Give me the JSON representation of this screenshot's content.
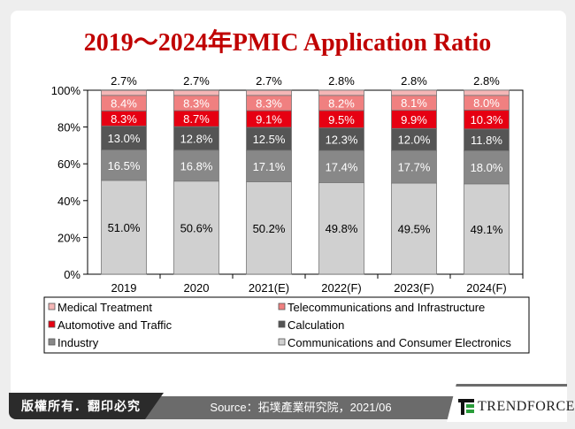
{
  "title": "2019～2024年PMIC Application Ratio",
  "footer": {
    "copyright": "版權所有．翻印必究",
    "source": "Source：拓墣產業研究院，2021/06",
    "logo_text": "TrendForce"
  },
  "chart_data": {
    "type": "bar",
    "stacked": true,
    "title": "2019～2024年PMIC Application Ratio",
    "categories": [
      "2019",
      "2020",
      "2021(E)",
      "2022(F)",
      "2023(F)",
      "2024(F)"
    ],
    "ylim": [
      0,
      100
    ],
    "yticks": [
      "0%",
      "20%",
      "40%",
      "60%",
      "80%",
      "100%"
    ],
    "grid": false,
    "legend_position": "bottom",
    "series": [
      {
        "name": "Communications and Consumer Electronics",
        "color": "#d0d0d0",
        "values": [
          51.0,
          50.6,
          50.2,
          49.8,
          49.5,
          49.1
        ],
        "labels": [
          "51.0%",
          "50.6%",
          "50.2%",
          "49.8%",
          "49.5%",
          "49.1%"
        ]
      },
      {
        "name": "Industry",
        "color": "#888888",
        "values": [
          16.5,
          16.8,
          17.1,
          17.4,
          17.7,
          18.0
        ],
        "labels": [
          "16.5%",
          "16.8%",
          "17.1%",
          "17.4%",
          "17.7%",
          "18.0%"
        ]
      },
      {
        "name": "Calculation",
        "color": "#555555",
        "values": [
          13.0,
          12.8,
          12.5,
          12.3,
          12.0,
          11.8
        ],
        "labels": [
          "13.0%",
          "12.8%",
          "12.5%",
          "12.3%",
          "12.0%",
          "11.8%"
        ]
      },
      {
        "name": "Automotive and Traffic",
        "color": "#e60012",
        "values": [
          8.3,
          8.7,
          9.1,
          9.5,
          9.9,
          10.3
        ],
        "labels": [
          "8.3%",
          "8.7%",
          "9.1%",
          "9.5%",
          "9.9%",
          "10.3%"
        ]
      },
      {
        "name": "Telecommunications and Infrastructure",
        "color": "#f08080",
        "values": [
          8.4,
          8.3,
          8.3,
          8.2,
          8.1,
          8.0
        ],
        "labels": [
          "8.4%",
          "8.3%",
          "8.3%",
          "8.2%",
          "8.1%",
          "8.0%"
        ]
      },
      {
        "name": "Medical Treatment",
        "color": "#f4b6b6",
        "values": [
          2.7,
          2.7,
          2.7,
          2.8,
          2.8,
          2.8
        ],
        "labels": [
          "2.7%",
          "2.7%",
          "2.7%",
          "2.8%",
          "2.8%",
          "2.8%"
        ]
      }
    ],
    "legend_order": [
      "Medical Treatment",
      "Telecommunications and Infrastructure",
      "Automotive and Traffic",
      "Calculation",
      "Industry",
      "Communications and Consumer Electronics"
    ]
  }
}
